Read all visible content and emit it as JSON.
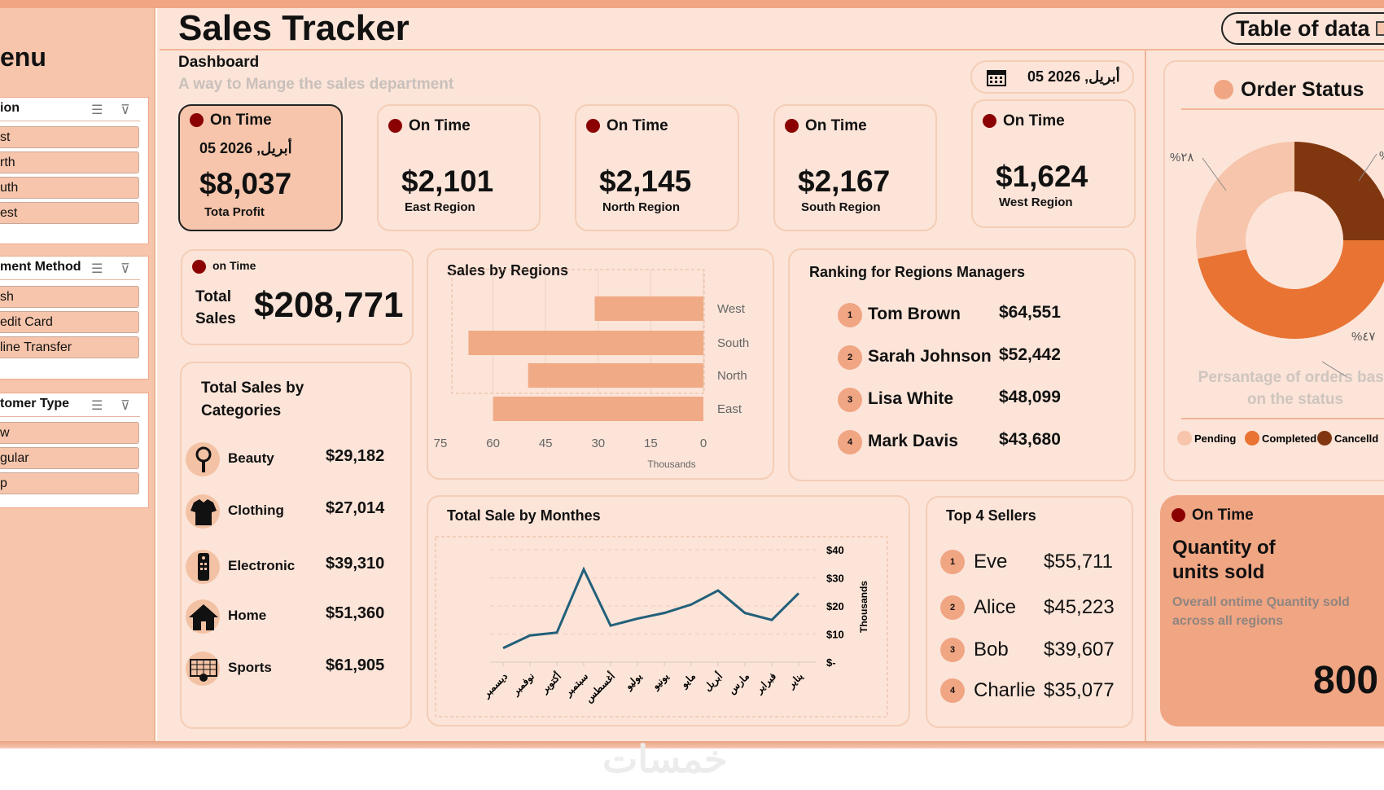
{
  "header": {
    "title": "Sales Tracker",
    "subtitle": "Dashboard",
    "tagline": "A way to Mange the sales department",
    "table_button": "Table of data",
    "date": "05 أبريل, 2026"
  },
  "sidebar": {
    "title": "enu",
    "slicers": [
      {
        "title": "ion",
        "items": [
          "st",
          "rth",
          "uth",
          "est"
        ]
      },
      {
        "title": "ment Method",
        "items": [
          "sh",
          "edit Card",
          "line Transfer"
        ]
      },
      {
        "title": "tomer Type",
        "items": [
          "w",
          "gular",
          "p"
        ]
      }
    ]
  },
  "kpis": [
    {
      "status": "On Time",
      "date": "05 أبريل, 2026",
      "value": "$8,037",
      "label": "Tota Profit"
    },
    {
      "status": "On Time",
      "value": "$2,101",
      "label": "East Region"
    },
    {
      "status": "On Time",
      "value": "$2,145",
      "label": "North Region"
    },
    {
      "status": "On Time",
      "value": "$2,167",
      "label": "South Region"
    },
    {
      "status": "On Time",
      "value": "$1,624",
      "label": "West Region"
    }
  ],
  "total_sales": {
    "status": "on Time",
    "label_1": "Total",
    "label_2": "Sales",
    "value": "$208,771"
  },
  "categories": {
    "title_1": "Total Sales by",
    "title_2": "Categories",
    "items": [
      {
        "name": "Beauty",
        "value": "$29,182",
        "icon": "mirror-icon"
      },
      {
        "name": "Clothing",
        "value": "$27,014",
        "icon": "shirt-icon"
      },
      {
        "name": "Electronic",
        "value": "$39,310",
        "icon": "remote-icon"
      },
      {
        "name": "Home",
        "value": "$51,360",
        "icon": "house-icon"
      },
      {
        "name": "Sports",
        "value": "$61,905",
        "icon": "goal-icon"
      }
    ]
  },
  "ranking": {
    "title": "Ranking for Regions Managers",
    "items": [
      {
        "rank": "1",
        "name": "Tom Brown",
        "value": "$64,551"
      },
      {
        "rank": "2",
        "name": "Sarah Johnson",
        "value": "$52,442"
      },
      {
        "rank": "3",
        "name": "Lisa White",
        "value": "$48,099"
      },
      {
        "rank": "4",
        "name": "Mark Davis",
        "value": "$43,680"
      }
    ]
  },
  "sellers": {
    "title": "Top 4 Sellers",
    "items": [
      {
        "rank": "1",
        "name": "Eve",
        "value": "$55,711"
      },
      {
        "rank": "2",
        "name": "Alice",
        "value": "$45,223"
      },
      {
        "rank": "3",
        "name": "Bob",
        "value": "$39,607"
      },
      {
        "rank": "4",
        "name": "Charlie",
        "value": "$35,077"
      }
    ]
  },
  "order_status": {
    "title": "Order Status",
    "caption_1": "Persantage of orders base",
    "caption_2": "on the status"
  },
  "quantity": {
    "status": "On Time",
    "title_1": "Quantity of",
    "title_2": "units sold",
    "caption_1": "Overall ontime Quantity sold",
    "caption_2": "across all regions",
    "value": "800"
  },
  "watermark": "خمسات",
  "colors": {
    "accent": "#f0a583",
    "status_dot": "#8b0000",
    "line": "#22607a",
    "bar": "#f0aa85",
    "pending": "#f6c5ab",
    "completed": "#e87332",
    "cancelled": "#80360f"
  },
  "chart_data": [
    {
      "type": "bar",
      "title": "Sales by Regions",
      "orientation": "horizontal",
      "x_reversed": true,
      "categories": [
        "West",
        "South",
        "North",
        "East"
      ],
      "values": [
        31,
        67,
        50,
        60
      ],
      "xlabel": "Thousands",
      "xticks": [
        "75",
        "60",
        "45",
        "30",
        "15",
        "0"
      ],
      "xlim": [
        0,
        75
      ],
      "grid": true
    },
    {
      "type": "line",
      "title": "Total Sale by Monthes",
      "x_reversed": true,
      "categories": [
        "ديسمبر",
        "نوفمبر",
        "أكتوبر",
        "سبتمبر",
        "أغسطس",
        "يوليو",
        "يونيو",
        "مايو",
        "أبريل",
        "مارس",
        "فبراير",
        "يناير"
      ],
      "values": [
        5,
        9.5,
        10.5,
        33,
        13,
        15.5,
        17.5,
        20.5,
        25.5,
        17.5,
        15,
        24.5
      ],
      "ylabel": "Thousands",
      "yticks": [
        "$40",
        "$30",
        "$20",
        "$10",
        "$-"
      ],
      "ylim": [
        0,
        40
      ],
      "y_axis_side": "right",
      "grid": true
    },
    {
      "type": "pie",
      "donut": true,
      "title": "Order Status",
      "series": [
        {
          "name": "Cancelld",
          "value": 25
        },
        {
          "name": "Completed",
          "value": 47
        },
        {
          "name": "Pending",
          "value": 28
        }
      ],
      "labels": [
        "%٢٨",
        "%٤٧",
        "%"
      ],
      "legend": [
        "Pending",
        "Completed",
        "Cancelld"
      ],
      "legend_position": "bottom"
    }
  ]
}
